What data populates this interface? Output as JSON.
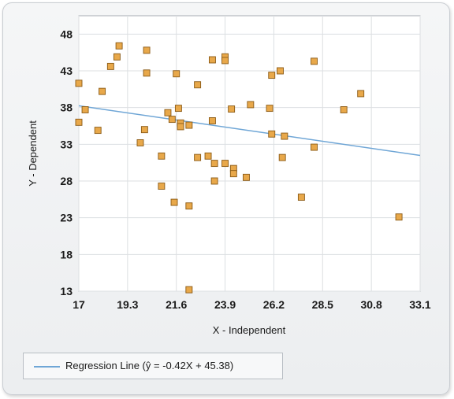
{
  "chart_data": {
    "type": "scatter",
    "title": "",
    "xlabel": "X - Independent",
    "ylabel": "Y - Dependent",
    "xlim": [
      17,
      33.1
    ],
    "ylim": [
      13,
      50.5
    ],
    "x_ticks": [
      17,
      19.3,
      21.6,
      23.9,
      26.2,
      28.5,
      30.8,
      33.1
    ],
    "x_tick_labels": [
      "17",
      "19.3",
      "21.6",
      "23.9",
      "26.2",
      "28.5",
      "30.8",
      "33.1"
    ],
    "y_ticks": [
      13,
      18,
      23,
      28,
      33,
      38,
      43,
      48
    ],
    "y_tick_labels": [
      "13",
      "18",
      "23",
      "28",
      "33",
      "38",
      "43",
      "48"
    ],
    "grid": true,
    "legend_position": "bottom-left",
    "series": [
      {
        "name": "",
        "kind": "scatter",
        "color": "#e8a84a",
        "points": [
          [
            17.0,
            41.3
          ],
          [
            17.0,
            36.0
          ],
          [
            17.3,
            37.7
          ],
          [
            17.9,
            34.9
          ],
          [
            18.1,
            40.2
          ],
          [
            18.5,
            43.6
          ],
          [
            18.8,
            44.9
          ],
          [
            18.9,
            46.4
          ],
          [
            19.9,
            33.2
          ],
          [
            20.1,
            35.0
          ],
          [
            20.2,
            45.8
          ],
          [
            20.2,
            42.7
          ],
          [
            20.9,
            31.4
          ],
          [
            20.9,
            27.3
          ],
          [
            21.2,
            37.3
          ],
          [
            21.4,
            36.4
          ],
          [
            21.5,
            25.1
          ],
          [
            21.6,
            42.6
          ],
          [
            21.7,
            37.9
          ],
          [
            21.8,
            35.9
          ],
          [
            21.8,
            35.4
          ],
          [
            22.2,
            35.6
          ],
          [
            22.2,
            24.6
          ],
          [
            22.2,
            13.2
          ],
          [
            22.6,
            41.1
          ],
          [
            22.6,
            31.2
          ],
          [
            23.1,
            31.4
          ],
          [
            23.3,
            44.5
          ],
          [
            23.3,
            36.2
          ],
          [
            23.4,
            28.0
          ],
          [
            23.4,
            30.4
          ],
          [
            23.9,
            30.4
          ],
          [
            23.9,
            44.9
          ],
          [
            23.9,
            44.4
          ],
          [
            24.2,
            37.8
          ],
          [
            24.3,
            29.7
          ],
          [
            24.3,
            29.0
          ],
          [
            24.9,
            28.5
          ],
          [
            25.1,
            38.4
          ],
          [
            26.0,
            37.9
          ],
          [
            26.1,
            42.4
          ],
          [
            26.1,
            34.4
          ],
          [
            26.5,
            43.0
          ],
          [
            26.6,
            31.2
          ],
          [
            26.7,
            34.1
          ],
          [
            27.5,
            25.8
          ],
          [
            28.1,
            44.3
          ],
          [
            28.1,
            32.6
          ],
          [
            29.5,
            37.7
          ],
          [
            30.3,
            39.9
          ],
          [
            32.1,
            23.1
          ]
        ]
      },
      {
        "name": "Regression Line (ŷ = -0.42X + 45.38)",
        "kind": "line",
        "color": "#6fa6d6",
        "slope": -0.42,
        "intercept": 45.38
      }
    ]
  }
}
